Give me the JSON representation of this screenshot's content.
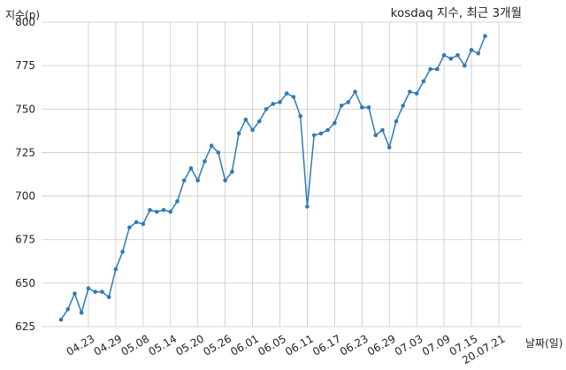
{
  "chart_data": {
    "type": "line",
    "title": "kosdaq 지수, 최근 3개월",
    "xlabel": "날짜(일)",
    "ylabel": "지수(p)",
    "ylim": [
      625,
      800
    ],
    "yticks": [
      625,
      650,
      675,
      700,
      725,
      750,
      775,
      800
    ],
    "grid": true,
    "xtick_labels": [
      "04.23",
      "04.29",
      "05.08",
      "05.14",
      "05.20",
      "05.26",
      "06.01",
      "06.05",
      "06.11",
      "06.17",
      "06.23",
      "06.29",
      "07.03",
      "07.09",
      "07.15",
      "20.07.21"
    ],
    "xtick_index": [
      4,
      8,
      12,
      16,
      20,
      24,
      28,
      32,
      36,
      40,
      44,
      48,
      52,
      56,
      60,
      64
    ],
    "series": [
      {
        "color": "#2e7ab6",
        "values": [
          629,
          635,
          644,
          633,
          647,
          645,
          645,
          642,
          658,
          668,
          682,
          685,
          684,
          692,
          691,
          692,
          691,
          697,
          709,
          716,
          709,
          720,
          729,
          725,
          709,
          714,
          736,
          744,
          738,
          743,
          750,
          753,
          754,
          759,
          757,
          746,
          694,
          735,
          736,
          738,
          742,
          752,
          754,
          760,
          751,
          751,
          735,
          738,
          728,
          743,
          752,
          760,
          759,
          766,
          773,
          773,
          781,
          779,
          781,
          775,
          784,
          782,
          792
        ]
      }
    ]
  }
}
